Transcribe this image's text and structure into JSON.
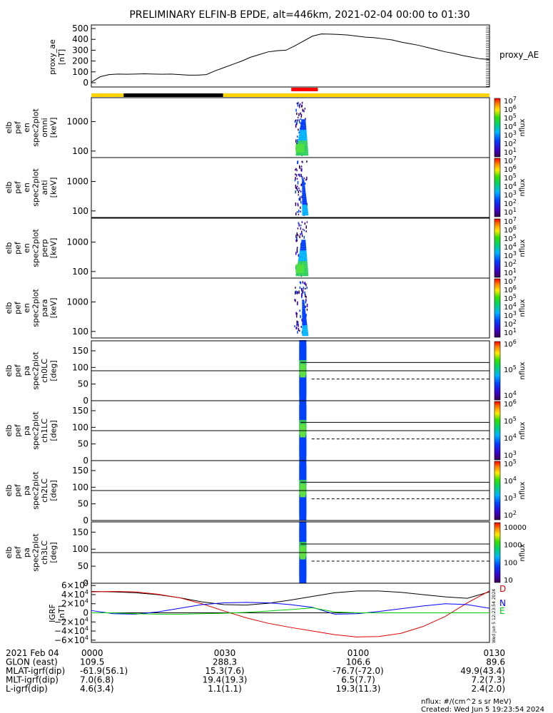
{
  "title": "PRELIMINARY ELFIN-B EPDE, alt=446km, 2021-02-04 00:00 to 01:30",
  "colors": {
    "yellow_bar": "#ffd400",
    "black_bar": "#000000",
    "red_marker": "#ff0000",
    "igrf_black": "#000000",
    "igrf_red": "#e00000",
    "igrf_blue": "#0000ff",
    "igrf_green": "#00cc00"
  },
  "chart_data": [
    {
      "type": "line",
      "name": "proxy_ae",
      "ylabel": [
        "proxy_ae",
        "[nT]"
      ],
      "right_label": "proxy_AE",
      "ylim": [
        0,
        500
      ],
      "yticks": [
        "500",
        "400",
        "300",
        "200",
        "100",
        "0"
      ],
      "xlim": [
        0,
        90
      ],
      "x": [
        0,
        1,
        2,
        4,
        6,
        8,
        10,
        12,
        14,
        16,
        18,
        20,
        22,
        24,
        26,
        28,
        30,
        32,
        34,
        36,
        38,
        40,
        42,
        44,
        46,
        48,
        50,
        52,
        54,
        56,
        58,
        60,
        62,
        64,
        66,
        68,
        70,
        72,
        74,
        76,
        78,
        80,
        82,
        84,
        86,
        88,
        90
      ],
      "y": [
        5,
        30,
        55,
        75,
        80,
        78,
        80,
        82,
        80,
        78,
        80,
        75,
        70,
        70,
        75,
        110,
        140,
        170,
        200,
        235,
        260,
        285,
        295,
        300,
        340,
        385,
        430,
        450,
        448,
        445,
        440,
        430,
        420,
        415,
        405,
        395,
        375,
        360,
        345,
        325,
        305,
        285,
        270,
        250,
        235,
        220,
        215
      ]
    },
    {
      "type": "bar",
      "name": "orbit-bar",
      "segments": [
        {
          "start": 0,
          "end": 7.3,
          "color": "yellow"
        },
        {
          "start": 7.3,
          "end": 29.8,
          "color": "black"
        },
        {
          "start": 29.8,
          "end": 90,
          "color": "yellow"
        }
      ],
      "marker": {
        "start": 45.2,
        "end": 51.2,
        "color": "red"
      }
    },
    {
      "type": "heatmap",
      "name": "spectrograms",
      "panels": [
        {
          "ylabel": [
            "elb",
            "pef",
            "en",
            "spec2plot",
            "omni",
            "[keV]"
          ],
          "ylim_log": [
            60,
            6500
          ],
          "yticks": [
            "1000",
            "100"
          ],
          "cbar_label": "nflux",
          "cbar_log": [
            1,
            7
          ]
        },
        {
          "ylabel": [
            "elb",
            "pef",
            "en",
            "spec2plot",
            "anti",
            "[keV]"
          ],
          "ylim_log": [
            60,
            6500
          ],
          "yticks": [
            "1000",
            "100"
          ],
          "cbar_label": "nflux",
          "cbar_log": [
            1,
            7
          ]
        },
        {
          "ylabel": [
            "elb",
            "pef",
            "en",
            "spec2plot",
            "perp",
            "[keV]"
          ],
          "ylim_log": [
            60,
            6500
          ],
          "yticks": [
            "1000",
            "100"
          ],
          "cbar_label": "nflux",
          "cbar_log": [
            1,
            7
          ]
        },
        {
          "ylabel": [
            "elb",
            "pef",
            "en",
            "spec2plot",
            "para",
            "[keV]"
          ],
          "ylim_log": [
            60,
            6500
          ],
          "yticks": [
            "1000",
            "100"
          ],
          "cbar_label": "nflux",
          "cbar_log": [
            1,
            7
          ]
        },
        {
          "ylabel": [
            "elb",
            "pef",
            "pa",
            "spec2plot",
            "ch0LC",
            "[deg]"
          ],
          "ylim": [
            0,
            180
          ],
          "yticks": [
            "150",
            "100",
            "50",
            "0"
          ],
          "cbar_label": "nflux",
          "cbar_log": [
            3.4,
            7
          ]
        },
        {
          "ylabel": [
            "elb",
            "pef",
            "pa",
            "spec2plot",
            "ch1LC",
            "[deg]"
          ],
          "ylim": [
            0,
            180
          ],
          "yticks": [
            "150",
            "100",
            "50",
            "0"
          ],
          "cbar_label": "nflux",
          "cbar_log": [
            3,
            6
          ]
        },
        {
          "ylabel": [
            "elb",
            "pef",
            "pa",
            "spec2plot",
            "ch2LC",
            "[deg]"
          ],
          "ylim": [
            0,
            180
          ],
          "yticks": [
            "150",
            "100",
            "50",
            "0"
          ],
          "cbar_label": "nflux",
          "cbar_log": [
            2,
            5
          ]
        },
        {
          "ylabel": [
            "elb",
            "pef",
            "pa",
            "spec2plot",
            "ch3LC",
            "[deg]"
          ],
          "ylim": [
            0,
            180
          ],
          "yticks": [
            "150",
            "100",
            "50",
            "0"
          ],
          "cbar_label": "nflux",
          "cbar_log": [
            1,
            4.3
          ]
        }
      ],
      "cbar_ticks_en": [
        "10",
        "10",
        "10",
        "10",
        "10",
        "10",
        "10"
      ],
      "cbar_ticks_en_exp": [
        "7",
        "6",
        "5",
        "4",
        "3",
        "2",
        "1"
      ],
      "cbar_ticks_pa0": [
        "10",
        "10",
        "10"
      ],
      "cbar_ticks_pa0_exp": [
        "6",
        "5",
        "4"
      ],
      "cbar_ticks_pa1": [
        "10",
        "10",
        "10",
        "10"
      ],
      "cbar_ticks_pa1_exp": [
        "6",
        "5",
        "4",
        "3"
      ],
      "cbar_ticks_pa2": [
        "10",
        "10",
        "10",
        "10"
      ],
      "cbar_ticks_pa2_exp": [
        "5",
        "4",
        "3",
        "2"
      ],
      "cbar_ticks_pa3": [
        "10000",
        "1000",
        "100",
        "10"
      ]
    },
    {
      "type": "line",
      "name": "IGRF",
      "ylabel": [
        "IGRF",
        "[nT]"
      ],
      "ylim": [
        -65000,
        65000
      ],
      "yticks": [
        {
          "m": "6",
          "e": "4"
        },
        {
          "m": "4",
          "e": "4"
        },
        {
          "m": "2",
          "e": "4"
        },
        {
          "m": "0",
          "e": ""
        },
        {
          "m": "−2",
          "e": "4"
        },
        {
          "m": "−4",
          "e": "4"
        },
        {
          "m": "−6",
          "e": "4"
        }
      ],
      "x": [
        0,
        5,
        10,
        15,
        20,
        25,
        30,
        35,
        40,
        45,
        50,
        55,
        60,
        65,
        70,
        75,
        80,
        85,
        90
      ],
      "series": [
        {
          "name": "D",
          "color": "black",
          "values": [
            47000,
            46000,
            44000,
            40000,
            33000,
            24000,
            18000,
            17000,
            21000,
            28000,
            36000,
            44000,
            48000,
            48000,
            45000,
            40000,
            35000,
            32000,
            46000
          ]
        },
        {
          "name": "D-red",
          "color": "red",
          "values": [
            46000,
            47000,
            46000,
            41000,
            33000,
            20000,
            4000,
            -11000,
            -23000,
            -32000,
            -40000,
            -48000,
            -53000,
            -52000,
            -45000,
            -30000,
            -8000,
            22000,
            48000
          ]
        },
        {
          "name": "N",
          "color": "blue",
          "values": [
            5000,
            -2000,
            -3000,
            2000,
            10000,
            18000,
            22000,
            23000,
            22000,
            18000,
            12000,
            -3000,
            -2000,
            3000,
            9000,
            15000,
            20000,
            18000,
            10000
          ]
        },
        {
          "name": "E",
          "color": "green",
          "values": [
            0,
            0,
            -2000,
            -3000,
            -3000,
            -2000,
            -1000,
            1000,
            4000,
            7000,
            11000,
            2000,
            0,
            0,
            0,
            0,
            0,
            0,
            0
          ]
        }
      ],
      "legend": [
        "D",
        "N",
        "E"
      ]
    }
  ],
  "ephemeris": {
    "rows": [
      {
        "label": "2021 Feb 04",
        "values": [
          "0000",
          "0030",
          "0100",
          "0130"
        ]
      },
      {
        "label": "GLON (east)",
        "values": [
          "109.5",
          "288.3",
          "106.6",
          "89.6"
        ]
      },
      {
        "label": "MLAT-igrf(dip)",
        "values": [
          "-61.9(56.1)",
          "15.3(7.6)",
          "-76.7(-72.0)",
          "49.9(43.4)"
        ]
      },
      {
        "label": "MLT-igrf(dip)",
        "values": [
          "7.0(6.8)",
          "19.4(19.3)",
          "6.5(7.7)",
          "7.2(7.3)"
        ]
      },
      {
        "label": "L-igrf(dip)",
        "values": [
          "4.6(3.4)",
          "1.1(1.1)",
          "19.3(11.3)",
          "2.4(2.0)"
        ]
      }
    ]
  },
  "footer": {
    "units": "nflux: #/(cm^2 s sr MeV)",
    "created": "Created: Wed Jun  5 19:23:54 2024",
    "side_stamp": "Wed Jun  5 12:23:54 2024"
  }
}
